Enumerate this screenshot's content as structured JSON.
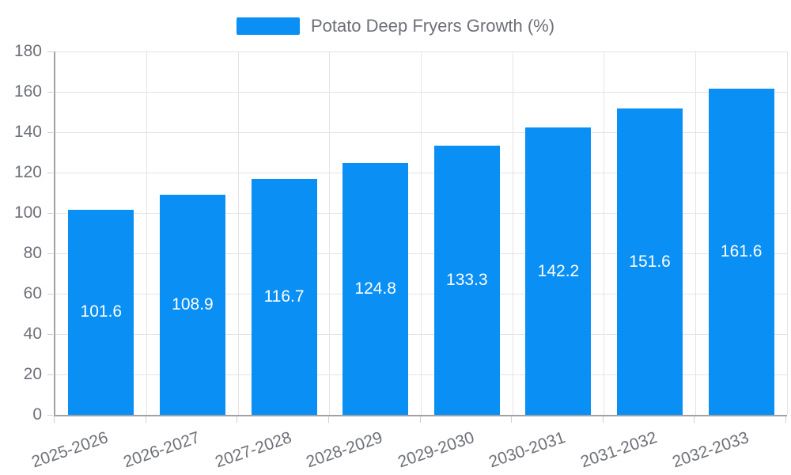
{
  "chart_data": {
    "type": "bar",
    "title": "Potato Deep Fryers Growth (%)",
    "categories": [
      "2025-2026",
      "2026-2027",
      "2027-2028",
      "2028-2029",
      "2029-2030",
      "2030-2031",
      "2031-2032",
      "2032-2033"
    ],
    "series": [
      {
        "name": "Potato Deep Fryers Growth (%)",
        "values": [
          101.6,
          108.9,
          116.7,
          124.8,
          133.3,
          142.2,
          151.6,
          161.6
        ]
      }
    ],
    "value_labels": [
      "101.6",
      "108.9",
      "116.7",
      "124.8",
      "133.3",
      "142.2",
      "151.6",
      "161.6"
    ],
    "xlabel": "",
    "ylabel": "",
    "ylim": [
      0,
      180
    ],
    "ytick_step": 20,
    "ytick_labels": [
      "0",
      "20",
      "40",
      "60",
      "80",
      "100",
      "120",
      "140",
      "160",
      "180"
    ],
    "grid": true,
    "legend_position": "top",
    "x_label_rotation_deg": -19,
    "colors": {
      "bar": "#0a8ff5",
      "bar_value_text": "#ffffff",
      "axis_line": "#a2a2a2",
      "grid_line": "#e4e4e4",
      "tick_mark": "#cfcfcf",
      "axis_text": "#6e7079",
      "legend_text": "#6e7079",
      "background": "#ffffff"
    }
  }
}
